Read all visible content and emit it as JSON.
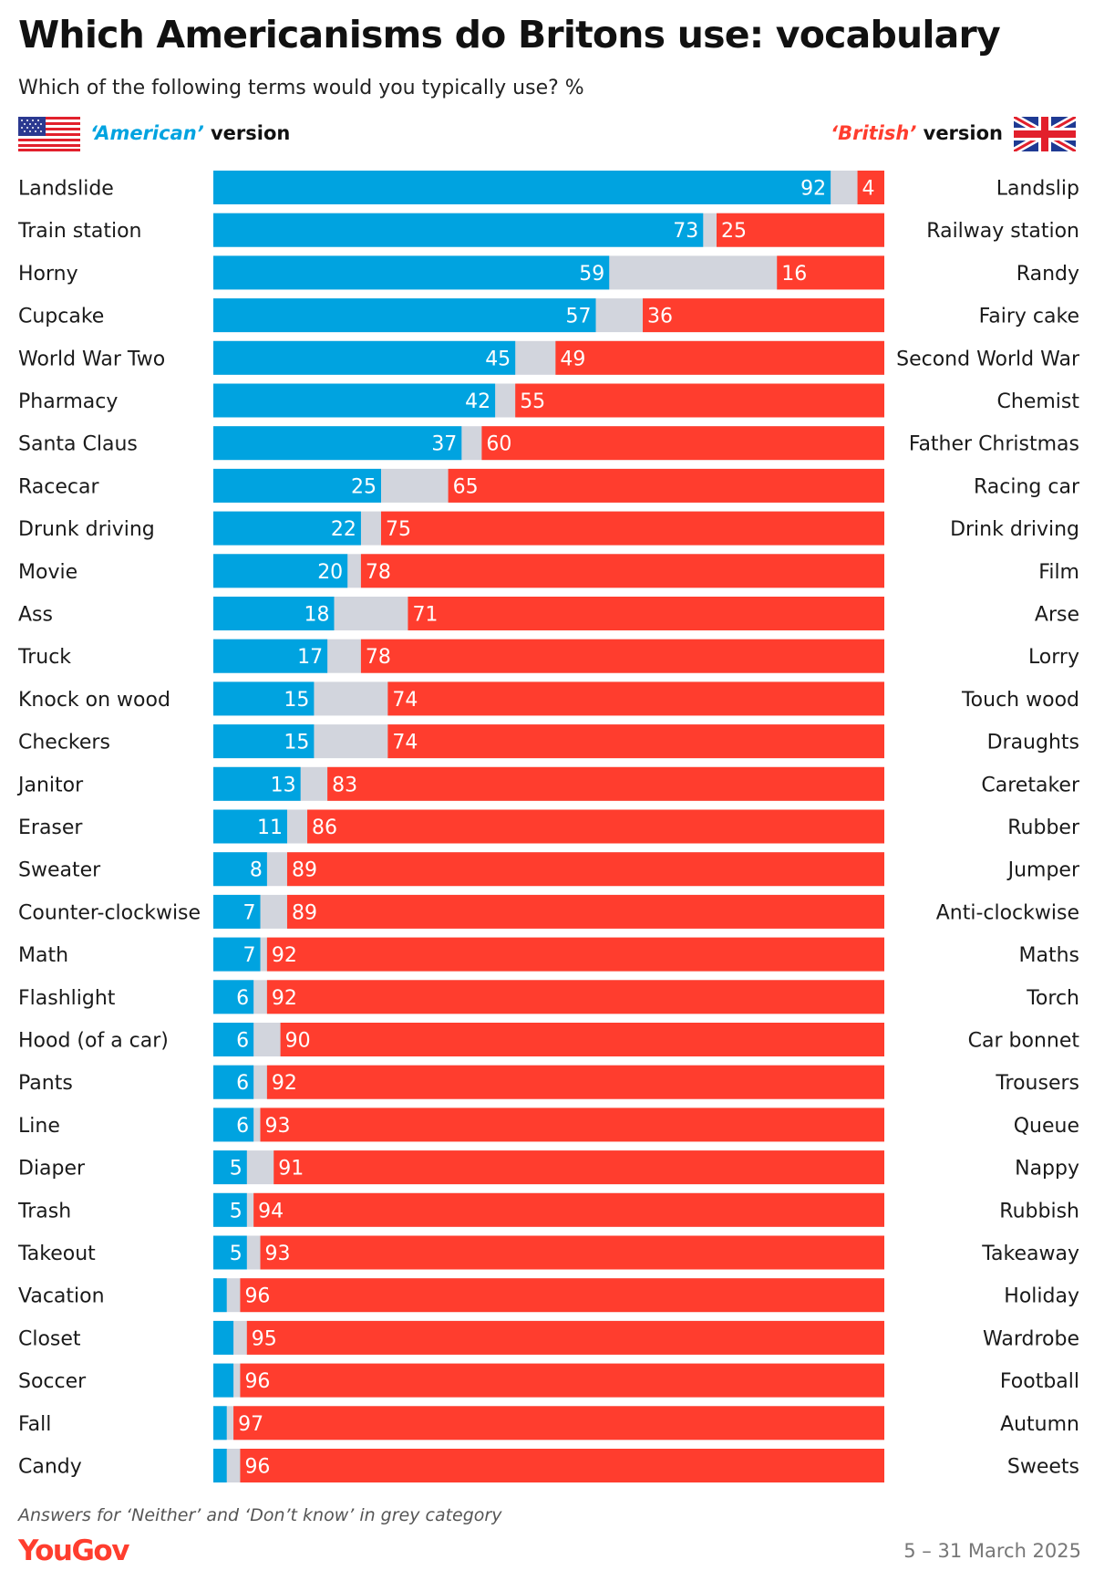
{
  "title": "Which Americanisms do Britons use: vocabulary",
  "subtitle": "Which of the following terms would you typically use? %",
  "legend": {
    "american_word": "‘American’",
    "american_rest": " version",
    "british_word": "‘British’",
    "british_rest": " version"
  },
  "colors": {
    "american": "#00a3e0",
    "british": "#ff3d2e",
    "neither": "#d2d5dd"
  },
  "icons": {
    "left": "us-flag-icon",
    "right": "uk-flag-icon"
  },
  "footnote": "Answers for ‘Neither’ and ‘Don’t know’ in grey category",
  "brand": "YouGov",
  "dates": "5 – 31 March 2025",
  "chart_data": {
    "type": "bar",
    "orientation": "horizontal",
    "stacked": true,
    "xlim": [
      0,
      100
    ],
    "series": [
      {
        "name": "‘American’ version",
        "color": "#00a3e0"
      },
      {
        "name": "‘British’ version",
        "color": "#ff3d2e"
      }
    ],
    "rows": [
      {
        "american": "Landslide",
        "british": "Landslip",
        "a": 92,
        "b": 4
      },
      {
        "american": "Train station",
        "british": "Railway station",
        "a": 73,
        "b": 25
      },
      {
        "american": "Horny",
        "british": "Randy",
        "a": 59,
        "b": 16
      },
      {
        "american": "Cupcake",
        "british": "Fairy cake",
        "a": 57,
        "b": 36
      },
      {
        "american": "World War Two",
        "british": "Second World War",
        "a": 45,
        "b": 49
      },
      {
        "american": "Pharmacy",
        "british": "Chemist",
        "a": 42,
        "b": 55
      },
      {
        "american": "Santa Claus",
        "british": "Father Christmas",
        "a": 37,
        "b": 60
      },
      {
        "american": "Racecar",
        "british": "Racing car",
        "a": 25,
        "b": 65
      },
      {
        "american": "Drunk driving",
        "british": "Drink driving",
        "a": 22,
        "b": 75
      },
      {
        "american": "Movie",
        "british": "Film",
        "a": 20,
        "b": 78
      },
      {
        "american": "Ass",
        "british": "Arse",
        "a": 18,
        "b": 71
      },
      {
        "american": "Truck",
        "british": "Lorry",
        "a": 17,
        "b": 78
      },
      {
        "american": "Knock on wood",
        "british": "Touch wood",
        "a": 15,
        "b": 74
      },
      {
        "american": "Checkers",
        "british": "Draughts",
        "a": 15,
        "b": 74
      },
      {
        "american": "Janitor",
        "british": "Caretaker",
        "a": 13,
        "b": 83
      },
      {
        "american": "Eraser",
        "british": "Rubber",
        "a": 11,
        "b": 86
      },
      {
        "american": "Sweater",
        "british": "Jumper",
        "a": 8,
        "b": 89
      },
      {
        "american": "Counter-clockwise",
        "british": "Anti-clockwise",
        "a": 7,
        "b": 89
      },
      {
        "american": "Math",
        "british": "Maths",
        "a": 7,
        "b": 92
      },
      {
        "american": "Flashlight",
        "british": "Torch",
        "a": 6,
        "b": 92
      },
      {
        "american": "Hood (of a car)",
        "british": "Car bonnet",
        "a": 6,
        "b": 90
      },
      {
        "american": "Pants",
        "british": "Trousers",
        "a": 6,
        "b": 92
      },
      {
        "american": "Line",
        "british": "Queue",
        "a": 6,
        "b": 93
      },
      {
        "american": "Diaper",
        "british": "Nappy",
        "a": 5,
        "b": 91
      },
      {
        "american": "Trash",
        "british": "Rubbish",
        "a": 5,
        "b": 94
      },
      {
        "american": "Takeout",
        "british": "Takeaway",
        "a": 5,
        "b": 93
      },
      {
        "american": "Vacation",
        "british": "Holiday",
        "a": 2,
        "b": 96
      },
      {
        "american": "Closet",
        "british": "Wardrobe",
        "a": 3,
        "b": 95
      },
      {
        "american": "Soccer",
        "british": "Football",
        "a": 3,
        "b": 96
      },
      {
        "american": "Fall",
        "british": "Autumn",
        "a": 2,
        "b": 97
      },
      {
        "american": "Candy",
        "british": "Sweets",
        "a": 2,
        "b": 96
      }
    ]
  }
}
